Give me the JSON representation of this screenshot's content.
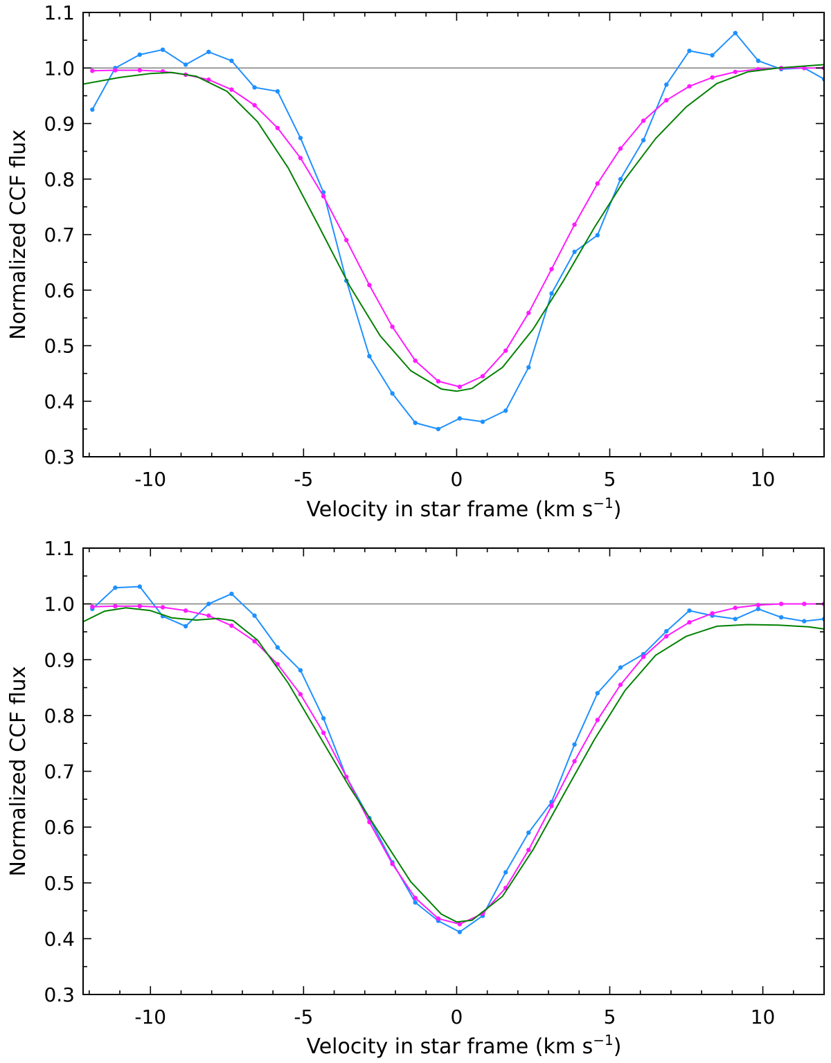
{
  "chart_data": [
    {
      "type": "line",
      "xlabel": "Velocity in star frame (km s",
      "xlabel_sup": "−1",
      "xlabel_close": ")",
      "ylabel": "Normalized CCF flux",
      "xlim": [
        -12.2,
        12.0
      ],
      "ylim": [
        0.3,
        1.1
      ],
      "xticks": [
        {
          "v": -10,
          "label": "-10"
        },
        {
          "v": -5,
          "label": "-5"
        },
        {
          "v": 0,
          "label": "0"
        },
        {
          "v": 5,
          "label": "5"
        },
        {
          "v": 10,
          "label": "10"
        }
      ],
      "yticks": [
        {
          "v": 0.3,
          "label": "0.3"
        },
        {
          "v": 0.4,
          "label": "0.4"
        },
        {
          "v": 0.5,
          "label": "0.5"
        },
        {
          "v": 0.6,
          "label": "0.6"
        },
        {
          "v": 0.7,
          "label": "0.7"
        },
        {
          "v": 0.8,
          "label": "0.8"
        },
        {
          "v": 0.9,
          "label": "0.9"
        },
        {
          "v": 1.0,
          "label": "1.0"
        },
        {
          "v": 1.1,
          "label": "1.1"
        }
      ],
      "reference_line": {
        "y": 1.0,
        "color": "#7f7f7f"
      },
      "series": [
        {
          "color": "#1e90ff",
          "markers": true,
          "x": [
            -11.9,
            -11.15,
            -10.35,
            -9.6,
            -8.85,
            -8.1,
            -7.35,
            -6.6,
            -5.85,
            -5.1,
            -4.35,
            -3.6,
            -2.85,
            -2.1,
            -1.35,
            -0.6,
            0.1,
            0.85,
            1.6,
            2.35,
            3.1,
            3.85,
            4.6,
            5.35,
            6.1,
            6.85,
            7.6,
            8.35,
            9.1,
            9.85,
            10.6,
            11.35,
            12.0
          ],
          "y": [
            0.925,
            1.0,
            1.024,
            1.033,
            1.006,
            1.029,
            1.013,
            0.965,
            0.958,
            0.874,
            0.776,
            0.617,
            0.481,
            0.414,
            0.361,
            0.35,
            0.369,
            0.363,
            0.383,
            0.461,
            0.594,
            0.669,
            0.699,
            0.8,
            0.87,
            0.97,
            1.031,
            1.023,
            1.063,
            1.013,
            0.998,
            1.0,
            0.98
          ]
        },
        {
          "color": "#ff1aff",
          "markers": true,
          "x": [
            -11.9,
            -11.15,
            -10.35,
            -9.6,
            -8.85,
            -8.1,
            -7.35,
            -6.6,
            -5.85,
            -5.1,
            -4.35,
            -3.6,
            -2.85,
            -2.1,
            -1.35,
            -0.6,
            0.1,
            0.85,
            1.6,
            2.35,
            3.1,
            3.85,
            4.6,
            5.35,
            6.1,
            6.85,
            7.6,
            8.35,
            9.1,
            9.85,
            10.6,
            11.35,
            12.0
          ],
          "y": [
            0.995,
            0.996,
            0.996,
            0.994,
            0.988,
            0.979,
            0.961,
            0.933,
            0.892,
            0.838,
            0.769,
            0.69,
            0.609,
            0.534,
            0.473,
            0.436,
            0.426,
            0.445,
            0.491,
            0.559,
            0.638,
            0.718,
            0.792,
            0.855,
            0.905,
            0.942,
            0.967,
            0.983,
            0.993,
            0.998,
            1.0,
            1.0,
            1.0
          ]
        },
        {
          "color": "#008000",
          "markers": false,
          "x": [
            -12.2,
            -11.0,
            -10.0,
            -9.3,
            -8.5,
            -7.5,
            -6.5,
            -5.5,
            -4.5,
            -3.5,
            -2.5,
            -1.5,
            -0.5,
            0.0,
            0.5,
            1.5,
            2.5,
            3.5,
            4.5,
            5.5,
            6.5,
            7.5,
            8.5,
            9.5,
            10.5,
            11.5,
            12.0
          ],
          "y": [
            0.971,
            0.983,
            0.99,
            0.992,
            0.985,
            0.958,
            0.903,
            0.82,
            0.715,
            0.608,
            0.518,
            0.455,
            0.422,
            0.418,
            0.423,
            0.461,
            0.53,
            0.618,
            0.713,
            0.8,
            0.873,
            0.93,
            0.972,
            0.993,
            1.0,
            1.004,
            1.006
          ]
        }
      ]
    },
    {
      "type": "line",
      "xlabel": "Velocity in star frame (km s",
      "xlabel_sup": "−1",
      "xlabel_close": ")",
      "ylabel": "Normalized CCF flux",
      "xlim": [
        -12.2,
        12.0
      ],
      "ylim": [
        0.3,
        1.1
      ],
      "xticks": [
        {
          "v": -10,
          "label": "-10"
        },
        {
          "v": -5,
          "label": "-5"
        },
        {
          "v": 0,
          "label": "0"
        },
        {
          "v": 5,
          "label": "5"
        },
        {
          "v": 10,
          "label": "10"
        }
      ],
      "yticks": [
        {
          "v": 0.3,
          "label": "0.3"
        },
        {
          "v": 0.4,
          "label": "0.4"
        },
        {
          "v": 0.5,
          "label": "0.5"
        },
        {
          "v": 0.6,
          "label": "0.6"
        },
        {
          "v": 0.7,
          "label": "0.7"
        },
        {
          "v": 0.8,
          "label": "0.8"
        },
        {
          "v": 0.9,
          "label": "0.9"
        },
        {
          "v": 1.0,
          "label": "1.0"
        },
        {
          "v": 1.1,
          "label": "1.1"
        }
      ],
      "reference_line": {
        "y": 1.0,
        "color": "#7f7f7f"
      },
      "series": [
        {
          "color": "#1e90ff",
          "markers": true,
          "x": [
            -11.9,
            -11.15,
            -10.35,
            -9.6,
            -8.85,
            -8.1,
            -7.35,
            -6.6,
            -5.85,
            -5.1,
            -4.35,
            -3.6,
            -2.85,
            -2.1,
            -1.35,
            -0.6,
            0.1,
            0.85,
            1.6,
            2.35,
            3.1,
            3.85,
            4.6,
            5.35,
            6.1,
            6.85,
            7.6,
            8.35,
            9.1,
            9.85,
            10.6,
            11.35,
            12.0
          ],
          "y": [
            0.991,
            1.029,
            1.031,
            0.978,
            0.96,
            1.0,
            1.018,
            0.979,
            0.922,
            0.881,
            0.795,
            0.69,
            0.616,
            0.537,
            0.465,
            0.432,
            0.412,
            0.441,
            0.519,
            0.59,
            0.645,
            0.748,
            0.84,
            0.886,
            0.91,
            0.951,
            0.988,
            0.979,
            0.973,
            0.991,
            0.976,
            0.969,
            0.973
          ]
        },
        {
          "color": "#ff1aff",
          "markers": true,
          "x": [
            -11.9,
            -11.15,
            -10.35,
            -9.6,
            -8.85,
            -8.1,
            -7.35,
            -6.6,
            -5.85,
            -5.1,
            -4.35,
            -3.6,
            -2.85,
            -2.1,
            -1.35,
            -0.6,
            0.1,
            0.85,
            1.6,
            2.35,
            3.1,
            3.85,
            4.6,
            5.35,
            6.1,
            6.85,
            7.6,
            8.35,
            9.1,
            9.85,
            10.6,
            11.35,
            12.0
          ],
          "y": [
            0.995,
            0.996,
            0.996,
            0.994,
            0.988,
            0.979,
            0.961,
            0.933,
            0.892,
            0.838,
            0.769,
            0.69,
            0.609,
            0.534,
            0.473,
            0.436,
            0.426,
            0.445,
            0.491,
            0.559,
            0.638,
            0.718,
            0.792,
            0.855,
            0.905,
            0.942,
            0.967,
            0.983,
            0.993,
            0.998,
            1.0,
            1.0,
            1.0
          ]
        },
        {
          "color": "#008000",
          "markers": false,
          "x": [
            -12.2,
            -11.5,
            -10.8,
            -10.0,
            -9.3,
            -8.5,
            -7.8,
            -7.3,
            -6.5,
            -5.5,
            -4.5,
            -3.5,
            -2.5,
            -1.5,
            -0.5,
            0.0,
            0.5,
            1.5,
            2.5,
            3.5,
            4.5,
            5.5,
            6.5,
            7.5,
            8.5,
            9.5,
            10.5,
            11.5,
            12.0
          ],
          "y": [
            0.968,
            0.987,
            0.993,
            0.988,
            0.975,
            0.971,
            0.974,
            0.97,
            0.935,
            0.858,
            0.765,
            0.672,
            0.587,
            0.502,
            0.444,
            0.43,
            0.433,
            0.476,
            0.56,
            0.659,
            0.757,
            0.845,
            0.908,
            0.942,
            0.96,
            0.963,
            0.962,
            0.959,
            0.955
          ]
        }
      ]
    }
  ]
}
